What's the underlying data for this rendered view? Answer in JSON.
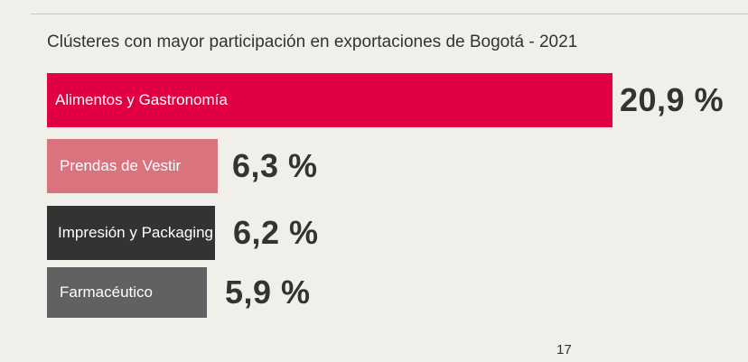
{
  "chart_data": {
    "type": "bar",
    "orientation": "horizontal",
    "title": "Clústeres con mayor participación en exportaciones de Bogotá - 2021",
    "categories": [
      "Alimentos y Gastronomía",
      "Prendas de Vestir",
      "Impresión y Packaging",
      "Farmacéutico"
    ],
    "values": [
      20.9,
      6.3,
      6.2,
      5.9
    ],
    "value_labels": [
      "20,9 %",
      "6,3 %",
      "6,2 %",
      "5,9 %"
    ],
    "colors": [
      "#e20045",
      "#d9737e",
      "#343232",
      "#616161"
    ],
    "xlim": [
      0,
      20.9
    ],
    "grid": false,
    "legend": "none"
  },
  "page_number": "17"
}
